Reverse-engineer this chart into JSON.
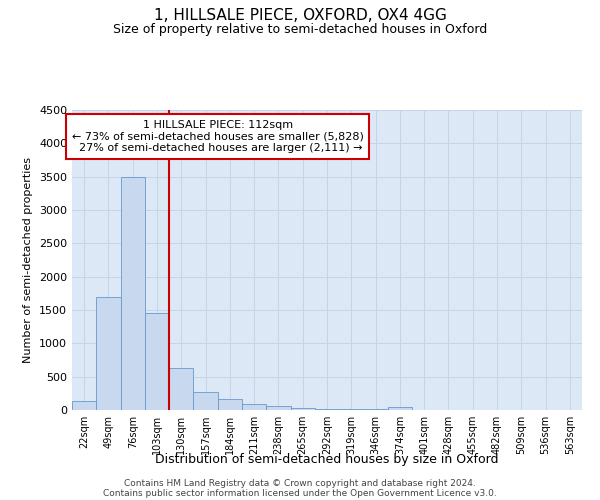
{
  "title": "1, HILLSALE PIECE, OXFORD, OX4 4GG",
  "subtitle": "Size of property relative to semi-detached houses in Oxford",
  "xlabel": "Distribution of semi-detached houses by size in Oxford",
  "ylabel": "Number of semi-detached properties",
  "property_label": "1 HILLSALE PIECE: 112sqm",
  "pct_smaller": 73,
  "count_smaller": 5828,
  "pct_larger": 27,
  "count_larger": 2111,
  "bin_labels": [
    "22sqm",
    "49sqm",
    "76sqm",
    "103sqm",
    "130sqm",
    "157sqm",
    "184sqm",
    "211sqm",
    "238sqm",
    "265sqm",
    "292sqm",
    "319sqm",
    "346sqm",
    "374sqm",
    "401sqm",
    "428sqm",
    "455sqm",
    "482sqm",
    "509sqm",
    "536sqm",
    "563sqm"
  ],
  "bar_values": [
    130,
    1700,
    3500,
    1450,
    630,
    270,
    160,
    90,
    55,
    35,
    20,
    12,
    8,
    50,
    5,
    3,
    2,
    2,
    1,
    1,
    1
  ],
  "bar_color": "#c8d8ee",
  "bar_edge_color": "#6699cc",
  "vline_x": 3.5,
  "vline_color": "#cc0000",
  "grid_color": "#c5d5e8",
  "background_color": "#dce8f5",
  "ylim": [
    0,
    4500
  ],
  "yticks": [
    0,
    500,
    1000,
    1500,
    2000,
    2500,
    3000,
    3500,
    4000,
    4500
  ],
  "footnote1": "Contains HM Land Registry data © Crown copyright and database right 2024.",
  "footnote2": "Contains public sector information licensed under the Open Government Licence v3.0."
}
